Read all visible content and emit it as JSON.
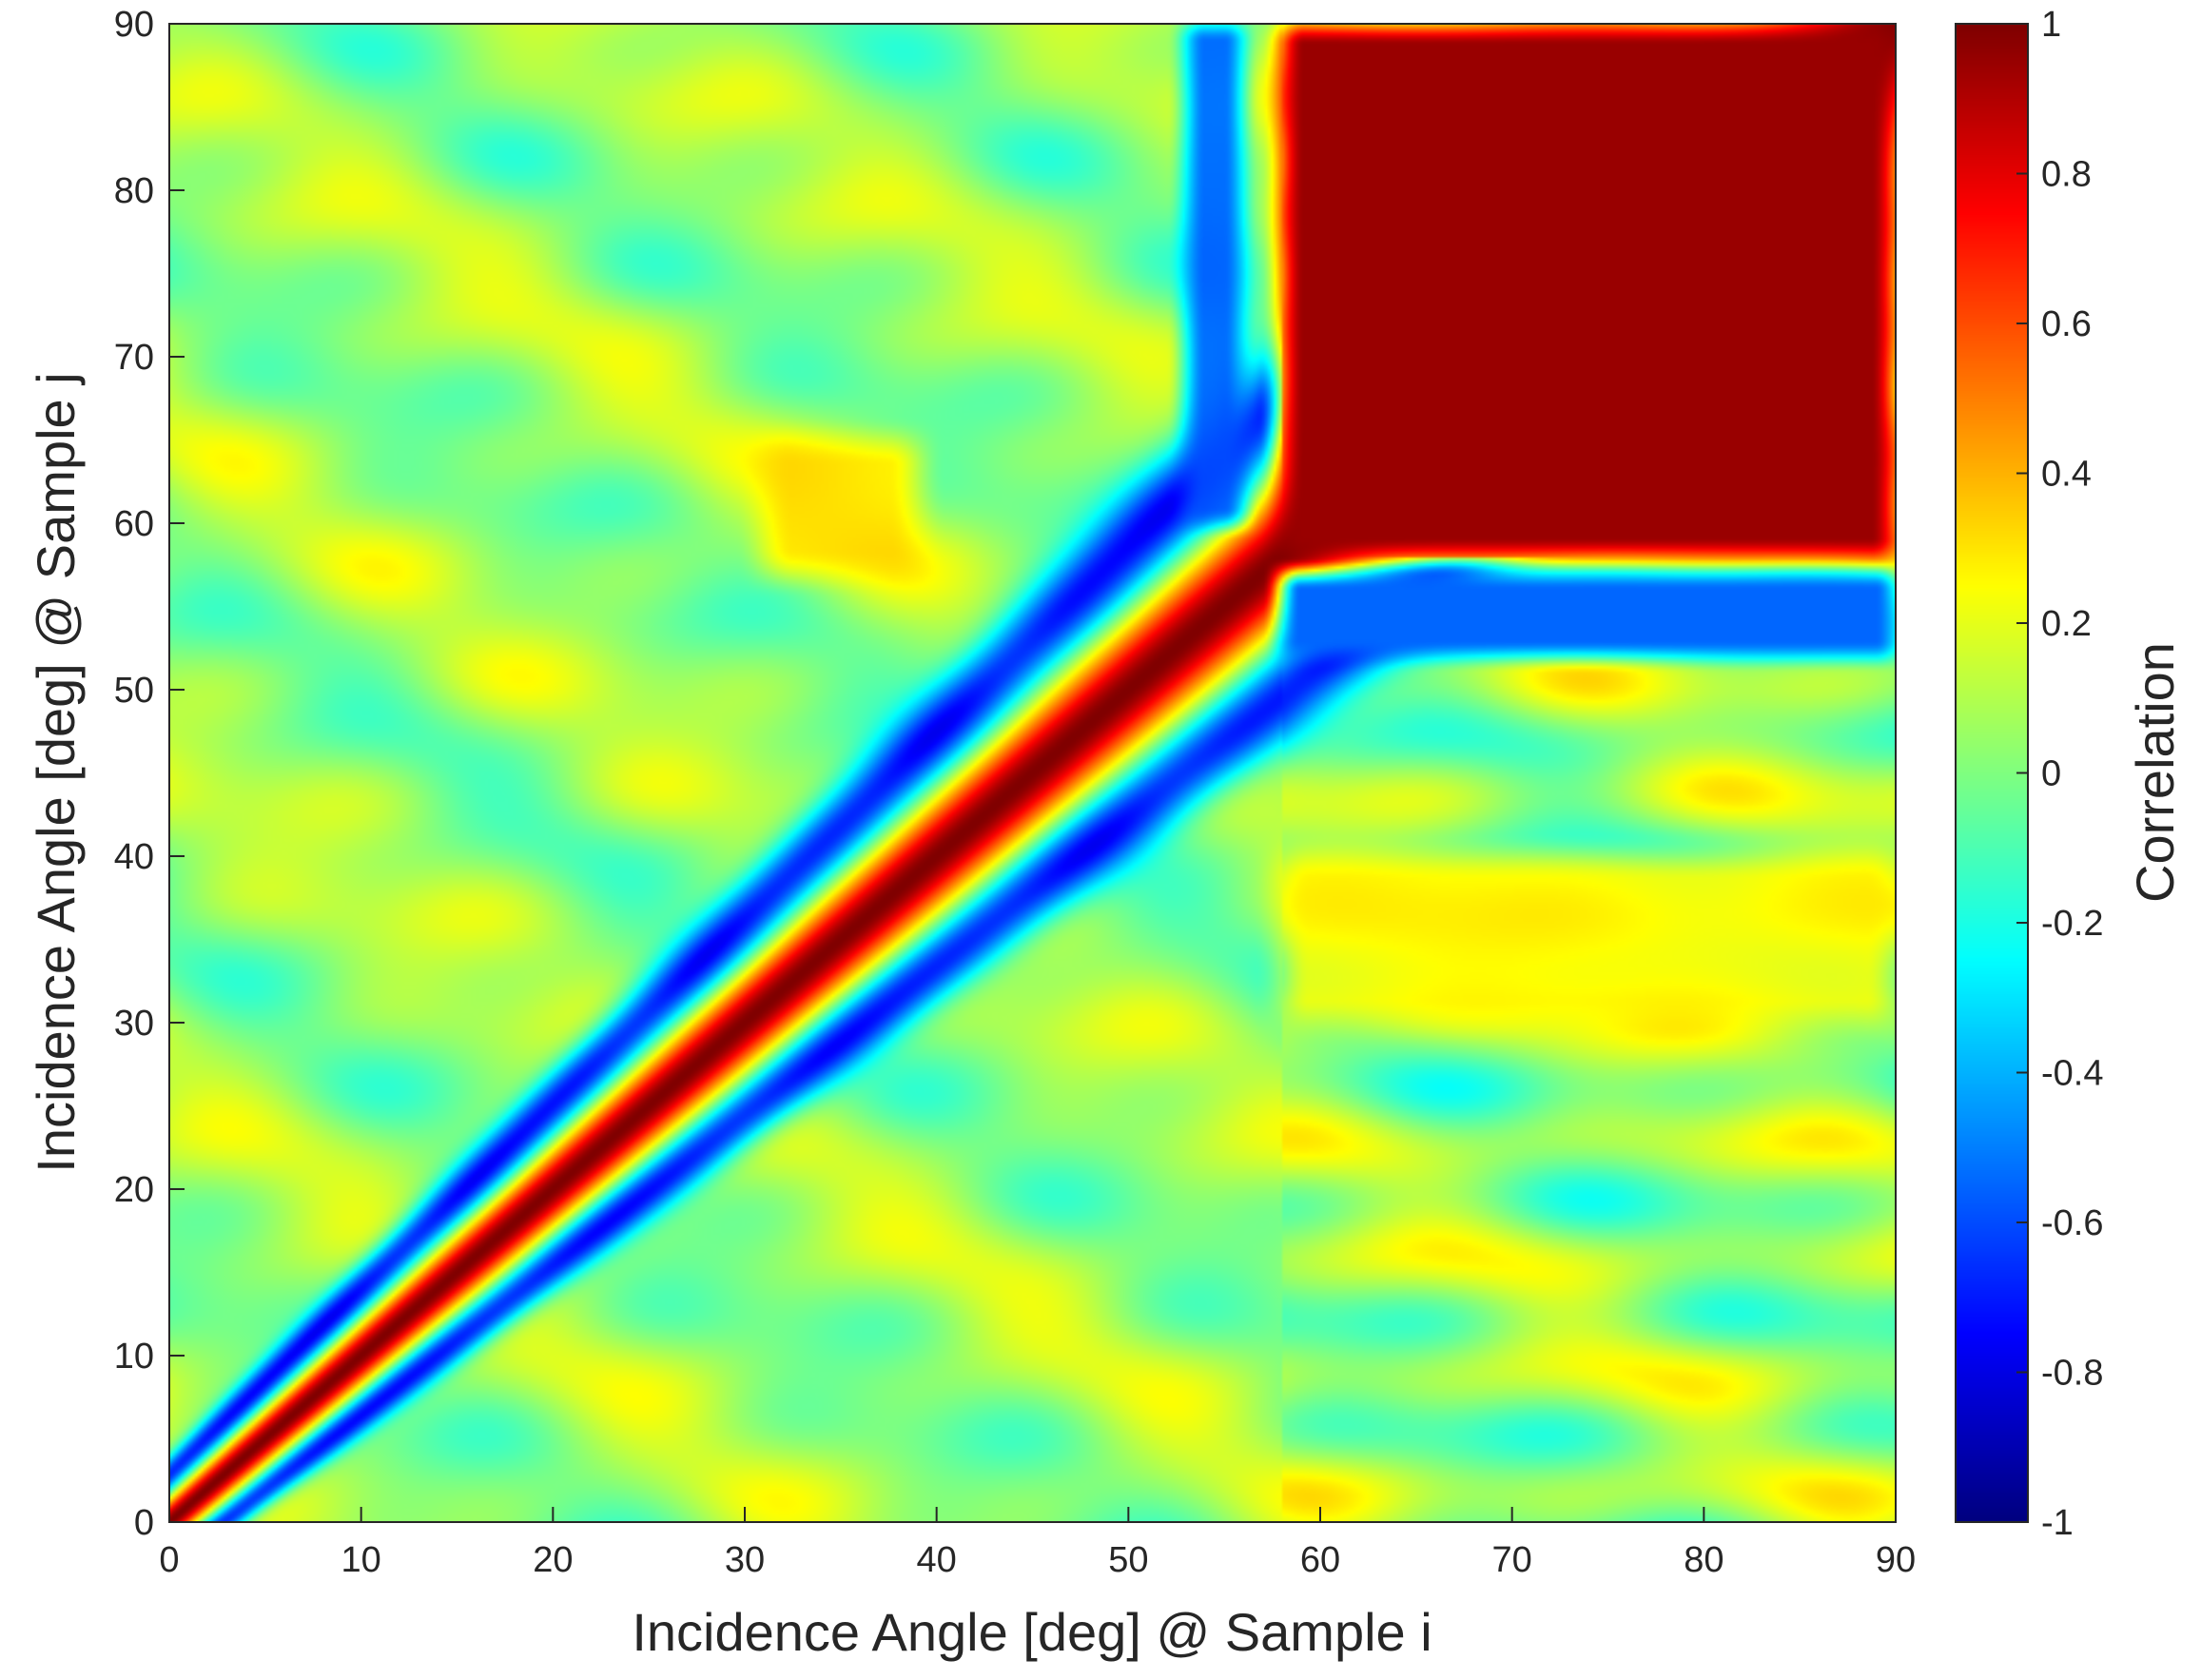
{
  "chart_data": {
    "type": "heatmap",
    "title": "",
    "xlabel": "Incidence Angle [deg] @ Sample i",
    "ylabel": "Incidence Angle [deg] @ Sample j",
    "xlim": [
      0,
      90
    ],
    "ylim": [
      0,
      90
    ],
    "xticks": [
      0,
      10,
      20,
      30,
      40,
      50,
      60,
      70,
      80,
      90
    ],
    "yticks": [
      0,
      10,
      20,
      30,
      40,
      50,
      60,
      70,
      80,
      90
    ],
    "colormap": "jet",
    "colorbar": {
      "label": "Correlation",
      "range": [
        -1,
        1
      ],
      "ticks": [
        -1,
        -0.8,
        -0.6,
        -0.4,
        -0.2,
        0,
        0.2,
        0.4,
        0.6,
        0.8,
        1
      ],
      "tick_labels": [
        "-1",
        "-0.8",
        "-0.6",
        "-0.4",
        "-0.2",
        "0",
        "0.2",
        "0.4",
        "0.6",
        "0.8",
        "1"
      ]
    },
    "features": {
      "diagonal_correlation": 1.0,
      "off_diagonal_min": -0.75,
      "high_correlation_region": {
        "i_range": [
          58,
          90
        ],
        "j_range": [
          58,
          90
        ],
        "value": 0.95
      },
      "negative_band_j": {
        "j_range": [
          52,
          57
        ],
        "i_range": [
          58,
          90
        ],
        "value": -0.55
      },
      "positive_band_j": {
        "j_range": [
          30,
          40
        ],
        "i_range": [
          58,
          90
        ],
        "value": 0.3
      },
      "positive_patch": {
        "i_range": [
          31,
          39
        ],
        "j_range": [
          57,
          65
        ],
        "value": 0.35
      },
      "negative_column": {
        "i_range": [
          53,
          56
        ],
        "j_range": [
          60,
          90
        ],
        "value": -0.6
      }
    }
  }
}
